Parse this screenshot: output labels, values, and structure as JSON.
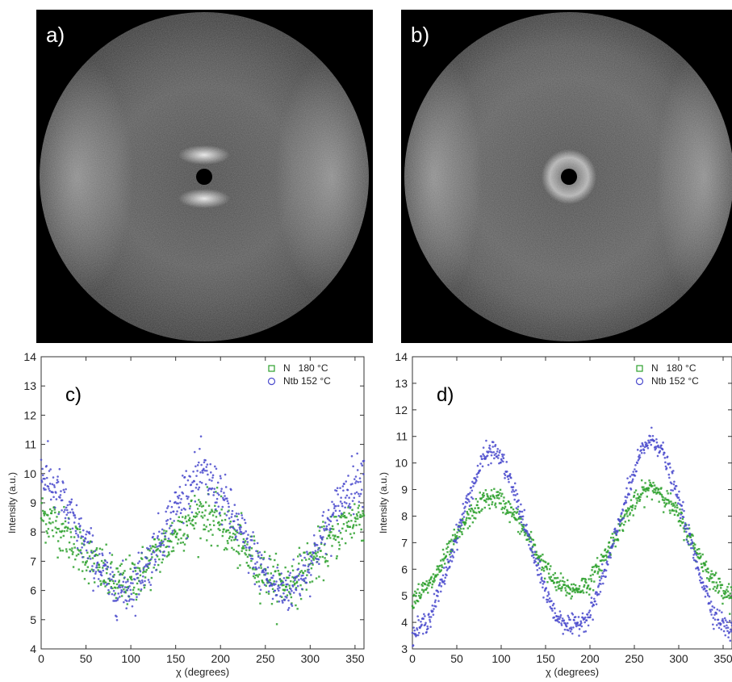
{
  "panels": {
    "a": {
      "letter": "a)"
    },
    "b": {
      "letter": "b)"
    }
  },
  "chart_data": [
    {
      "panel": "c)",
      "type": "scatter",
      "xlabel": "χ (degrees)",
      "ylabel": "Intensity (a.u.)",
      "xlim": [
        0,
        360
      ],
      "ylim": [
        4,
        14
      ],
      "xticks": [
        0,
        50,
        100,
        150,
        200,
        250,
        300,
        350
      ],
      "yticks": [
        4,
        5,
        6,
        7,
        8,
        9,
        10,
        11,
        12,
        13,
        14
      ],
      "legend": "top-right",
      "grid": false,
      "series": [
        {
          "name": "N   180 °C",
          "color": "#2ca02c",
          "marker": "square",
          "x": [
            0,
            20,
            40,
            60,
            80,
            90,
            100,
            120,
            140,
            160,
            180,
            200,
            220,
            240,
            260,
            270,
            280,
            300,
            320,
            340,
            360
          ],
          "y": [
            8.6,
            8.2,
            7.5,
            6.9,
            6.3,
            6.2,
            6.3,
            6.9,
            7.6,
            8.3,
            8.7,
            8.3,
            7.6,
            6.9,
            6.3,
            6.2,
            6.3,
            6.9,
            7.6,
            8.3,
            8.6
          ]
        },
        {
          "name": "Ntb 152 °C",
          "color": "#4a4acd",
          "marker": "circle",
          "x": [
            0,
            20,
            40,
            60,
            80,
            90,
            100,
            120,
            140,
            160,
            180,
            200,
            220,
            240,
            260,
            270,
            280,
            300,
            320,
            340,
            360
          ],
          "y": [
            10.0,
            9.3,
            8.1,
            7.0,
            6.1,
            6.0,
            6.1,
            7.0,
            8.2,
            9.4,
            10.0,
            9.3,
            8.1,
            7.0,
            6.1,
            6.0,
            6.1,
            7.0,
            8.2,
            9.4,
            10.0
          ]
        }
      ]
    },
    {
      "panel": "d)",
      "type": "scatter",
      "xlabel": "χ (degrees)",
      "ylabel": "Intensity (a.u.)",
      "xlim": [
        0,
        360
      ],
      "ylim": [
        3,
        14
      ],
      "xticks": [
        0,
        50,
        100,
        150,
        200,
        250,
        300,
        350
      ],
      "yticks": [
        3,
        4,
        5,
        6,
        7,
        8,
        9,
        10,
        11,
        12,
        13,
        14
      ],
      "legend": "top-right",
      "grid": false,
      "series": [
        {
          "name": "N   180 °C",
          "color": "#2ca02c",
          "marker": "square",
          "x": [
            0,
            20,
            40,
            60,
            80,
            90,
            100,
            120,
            140,
            160,
            180,
            200,
            220,
            240,
            260,
            270,
            280,
            300,
            320,
            340,
            360
          ],
          "y": [
            4.9,
            5.4,
            6.6,
            7.8,
            8.6,
            8.7,
            8.6,
            7.8,
            6.6,
            5.5,
            5.2,
            5.5,
            6.7,
            8.0,
            8.9,
            9.1,
            8.9,
            8.0,
            6.7,
            5.5,
            5.0
          ]
        },
        {
          "name": "Ntb 152 °C",
          "color": "#4a4acd",
          "marker": "circle",
          "x": [
            0,
            20,
            40,
            60,
            80,
            90,
            100,
            120,
            140,
            160,
            180,
            200,
            220,
            240,
            260,
            270,
            280,
            300,
            320,
            340,
            360
          ],
          "y": [
            3.5,
            4.2,
            6.1,
            8.4,
            10.2,
            10.5,
            10.2,
            8.4,
            6.1,
            4.3,
            3.8,
            4.3,
            6.2,
            8.6,
            10.6,
            10.9,
            10.6,
            8.6,
            6.2,
            4.3,
            3.6
          ]
        }
      ]
    }
  ]
}
